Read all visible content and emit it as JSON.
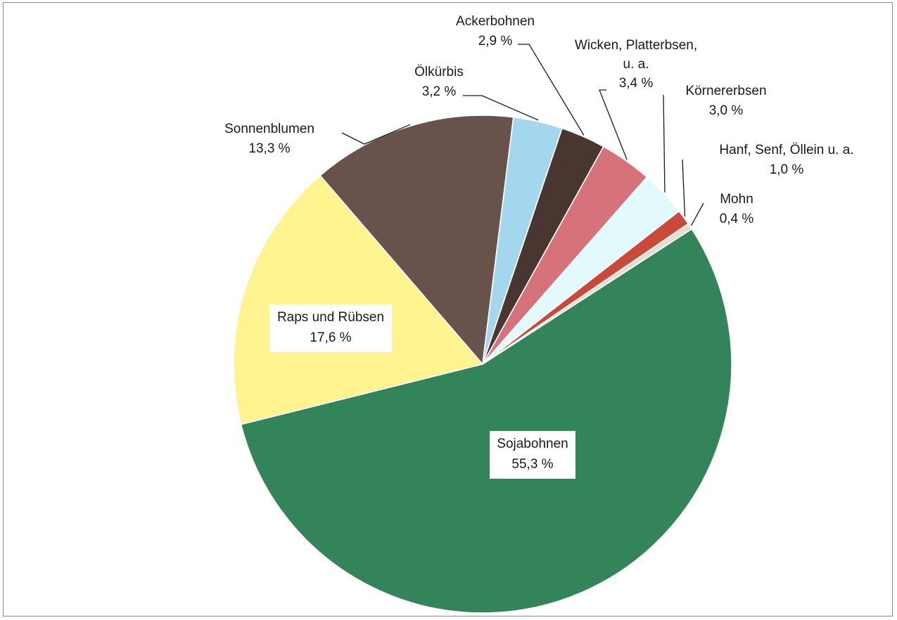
{
  "chart_data": {
    "type": "pie",
    "title": "",
    "unit": "%",
    "slices": [
      {
        "name": "Sojabohnen",
        "value": 55.3,
        "label": "55,3 %",
        "color": "#33845a"
      },
      {
        "name": "Raps und Rübsen",
        "value": 17.6,
        "label": "17,6 %",
        "color": "#fff48f"
      },
      {
        "name": "Sonnenblumen",
        "value": 13.3,
        "label": "13,3 %",
        "color": "#67534c"
      },
      {
        "name": "Ölkürbis",
        "value": 3.2,
        "label": "3,2 %",
        "color": "#a4d6ee"
      },
      {
        "name": "Ackerbohnen",
        "value": 2.9,
        "label": "2,9 %",
        "color": "#4a3630"
      },
      {
        "name": "Wicken, Platterbsen, u. a.",
        "value": 3.4,
        "label": "3,4 %",
        "color": "#d6737a"
      },
      {
        "name": "Körnererbsen",
        "value": 3.0,
        "label": "3,0 %",
        "color": "#e3fafd"
      },
      {
        "name": "Hanf, Senf, Öllein u. a.",
        "value": 1.0,
        "label": "1,0 %",
        "color": "#c9493a"
      },
      {
        "name": "Mohn",
        "value": 0.4,
        "label": "0,4 %",
        "color": "#e6dcd0"
      }
    ]
  }
}
